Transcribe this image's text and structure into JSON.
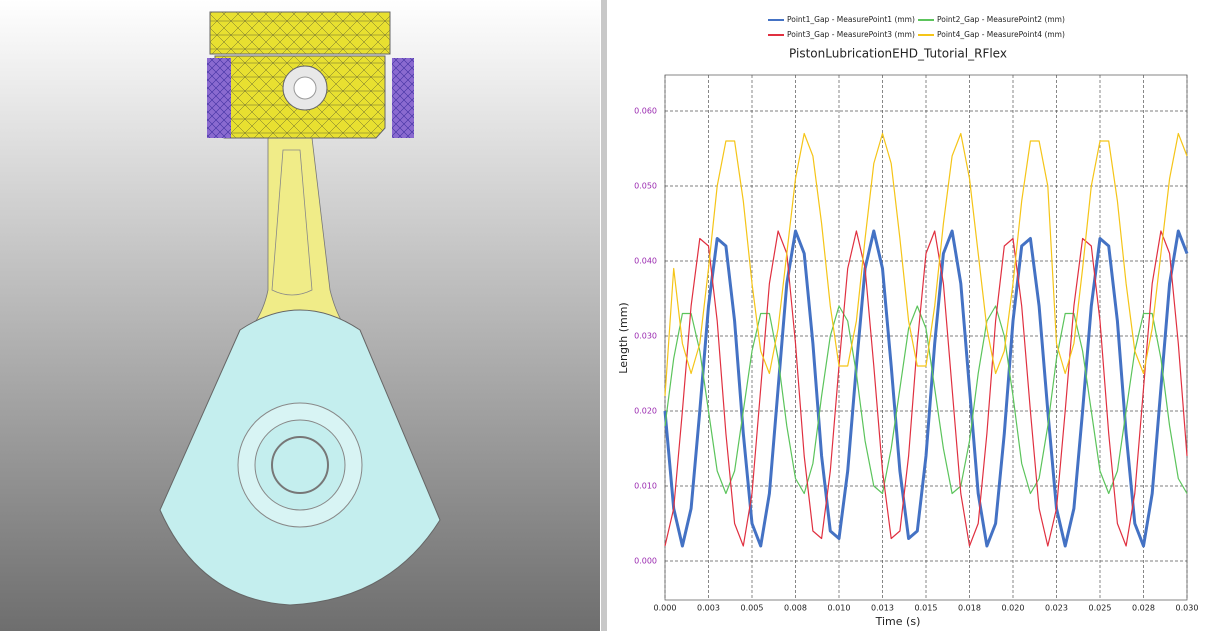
{
  "chart_data": {
    "type": "line",
    "title": "PistonLubricationEHD_Tutorial_RFlex",
    "x_label": "Time (s)",
    "y_label": "Length (mm)",
    "x": [
      0,
      0.0005,
      0.001,
      0.0015,
      0.002,
      0.0025,
      0.003,
      0.0035,
      0.004,
      0.0045,
      0.005,
      0.0055,
      0.006,
      0.0065,
      0.007,
      0.0075,
      0.008,
      0.0085,
      0.009,
      0.0095,
      0.01,
      0.0105,
      0.011,
      0.0115,
      0.012,
      0.0125,
      0.013,
      0.0135,
      0.014,
      0.0145,
      0.015,
      0.0155,
      0.016,
      0.0165,
      0.017,
      0.0175,
      0.018,
      0.0185,
      0.019,
      0.0195,
      0.02,
      0.0205,
      0.021,
      0.0215,
      0.022,
      0.0225,
      0.023,
      0.0235,
      0.024,
      0.0245,
      0.025,
      0.0255,
      0.026,
      0.0265,
      0.027,
      0.0275,
      0.028,
      0.0285,
      0.029,
      0.0295,
      0.03
    ],
    "series": [
      {
        "name": "Point1_Gap - MeasurePoint1 (mm)",
        "color": "#4472c4",
        "width": 3,
        "values": [
          0.02,
          0.007,
          0.002,
          0.007,
          0.02,
          0.034,
          0.043,
          0.042,
          0.032,
          0.017,
          0.005,
          0.002,
          0.009,
          0.023,
          0.037,
          0.044,
          0.041,
          0.029,
          0.014,
          0.004,
          0.003,
          0.012,
          0.026,
          0.039,
          0.044,
          0.039,
          0.026,
          0.012,
          0.003,
          0.004,
          0.014,
          0.029,
          0.041,
          0.044,
          0.037,
          0.023,
          0.009,
          0.002,
          0.005,
          0.017,
          0.032,
          0.042,
          0.043,
          0.034,
          0.02,
          0.007,
          0.002,
          0.007,
          0.02,
          0.034,
          0.043,
          0.042,
          0.032,
          0.017,
          0.005,
          0.002,
          0.009,
          0.023,
          0.037,
          0.044,
          0.041
        ]
      },
      {
        "name": "Point2_Gap - MeasurePoint2 (mm)",
        "color": "#5cc45c",
        "width": 1.2,
        "values": [
          0.018,
          0.027,
          0.033,
          0.033,
          0.028,
          0.02,
          0.012,
          0.009,
          0.012,
          0.02,
          0.028,
          0.033,
          0.033,
          0.027,
          0.018,
          0.011,
          0.009,
          0.013,
          0.022,
          0.03,
          0.034,
          0.032,
          0.025,
          0.016,
          0.01,
          0.009,
          0.015,
          0.023,
          0.031,
          0.034,
          0.031,
          0.023,
          0.015,
          0.009,
          0.01,
          0.016,
          0.025,
          0.032,
          0.034,
          0.03,
          0.022,
          0.013,
          0.009,
          0.011,
          0.018,
          0.027,
          0.033,
          0.033,
          0.028,
          0.02,
          0.012,
          0.009,
          0.012,
          0.02,
          0.028,
          0.033,
          0.033,
          0.027,
          0.018,
          0.011,
          0.009
        ]
      },
      {
        "name": "Point3_Gap - MeasurePoint3 (mm)",
        "color": "#e03040",
        "width": 1.2,
        "values": [
          0.002,
          0.007,
          0.02,
          0.034,
          0.043,
          0.042,
          0.032,
          0.017,
          0.005,
          0.002,
          0.009,
          0.023,
          0.037,
          0.044,
          0.041,
          0.029,
          0.014,
          0.004,
          0.003,
          0.012,
          0.026,
          0.039,
          0.044,
          0.039,
          0.026,
          0.012,
          0.003,
          0.004,
          0.014,
          0.029,
          0.041,
          0.044,
          0.037,
          0.023,
          0.009,
          0.002,
          0.005,
          0.017,
          0.032,
          0.042,
          0.043,
          0.034,
          0.02,
          0.007,
          0.002,
          0.007,
          0.02,
          0.034,
          0.043,
          0.042,
          0.032,
          0.017,
          0.005,
          0.002,
          0.009,
          0.023,
          0.037,
          0.044,
          0.041,
          0.029,
          0.014
        ]
      },
      {
        "name": "Point4_Gap - MeasurePoint4 (mm)",
        "color": "#f5c518",
        "width": 1.2,
        "values": [
          0.022,
          0.039,
          0.029,
          0.025,
          0.029,
          0.039,
          0.05,
          0.056,
          0.056,
          0.048,
          0.037,
          0.028,
          0.025,
          0.031,
          0.041,
          0.051,
          0.057,
          0.054,
          0.045,
          0.034,
          0.026,
          0.026,
          0.032,
          0.043,
          0.053,
          0.057,
          0.053,
          0.043,
          0.032,
          0.026,
          0.026,
          0.034,
          0.045,
          0.054,
          0.057,
          0.051,
          0.041,
          0.031,
          0.025,
          0.028,
          0.037,
          0.048,
          0.056,
          0.056,
          0.05,
          0.029,
          0.025,
          0.029,
          0.039,
          0.05,
          0.056,
          0.056,
          0.048,
          0.037,
          0.028,
          0.025,
          0.031,
          0.041,
          0.051,
          0.057,
          0.054
        ]
      }
    ],
    "xlim": [
      0,
      0.03
    ],
    "xticks": [
      {
        "value": 0,
        "label": "0.000"
      },
      {
        "value": 0.0025,
        "label": "0.003"
      },
      0.005,
      {
        "value": 0.0075,
        "label": "0.008"
      },
      {
        "value": 0.01,
        "label": "0.010"
      },
      {
        "value": 0.0125,
        "label": "0.013"
      },
      0.015,
      {
        "value": 0.0175,
        "label": "0.018"
      },
      {
        "value": 0.02,
        "label": "0.020"
      },
      {
        "value": 0.0225,
        "label": "0.023"
      },
      0.025,
      {
        "value": 0.0275,
        "label": "0.028"
      },
      {
        "value": 0.03,
        "label": "0.030"
      }
    ],
    "ylim": [
      -0.0052,
      0.0648
    ],
    "yticks": [
      {
        "value": 0,
        "label": "0.000"
      },
      {
        "value": 0.01,
        "label": "0.010"
      },
      {
        "value": 0.02,
        "label": "0.020"
      },
      {
        "value": 0.03,
        "label": "0.030"
      },
      {
        "value": 0.04,
        "label": "0.040"
      },
      {
        "value": 0.05,
        "label": "0.050"
      },
      {
        "value": 0.06,
        "label": "0.060"
      }
    ],
    "grid": true
  }
}
